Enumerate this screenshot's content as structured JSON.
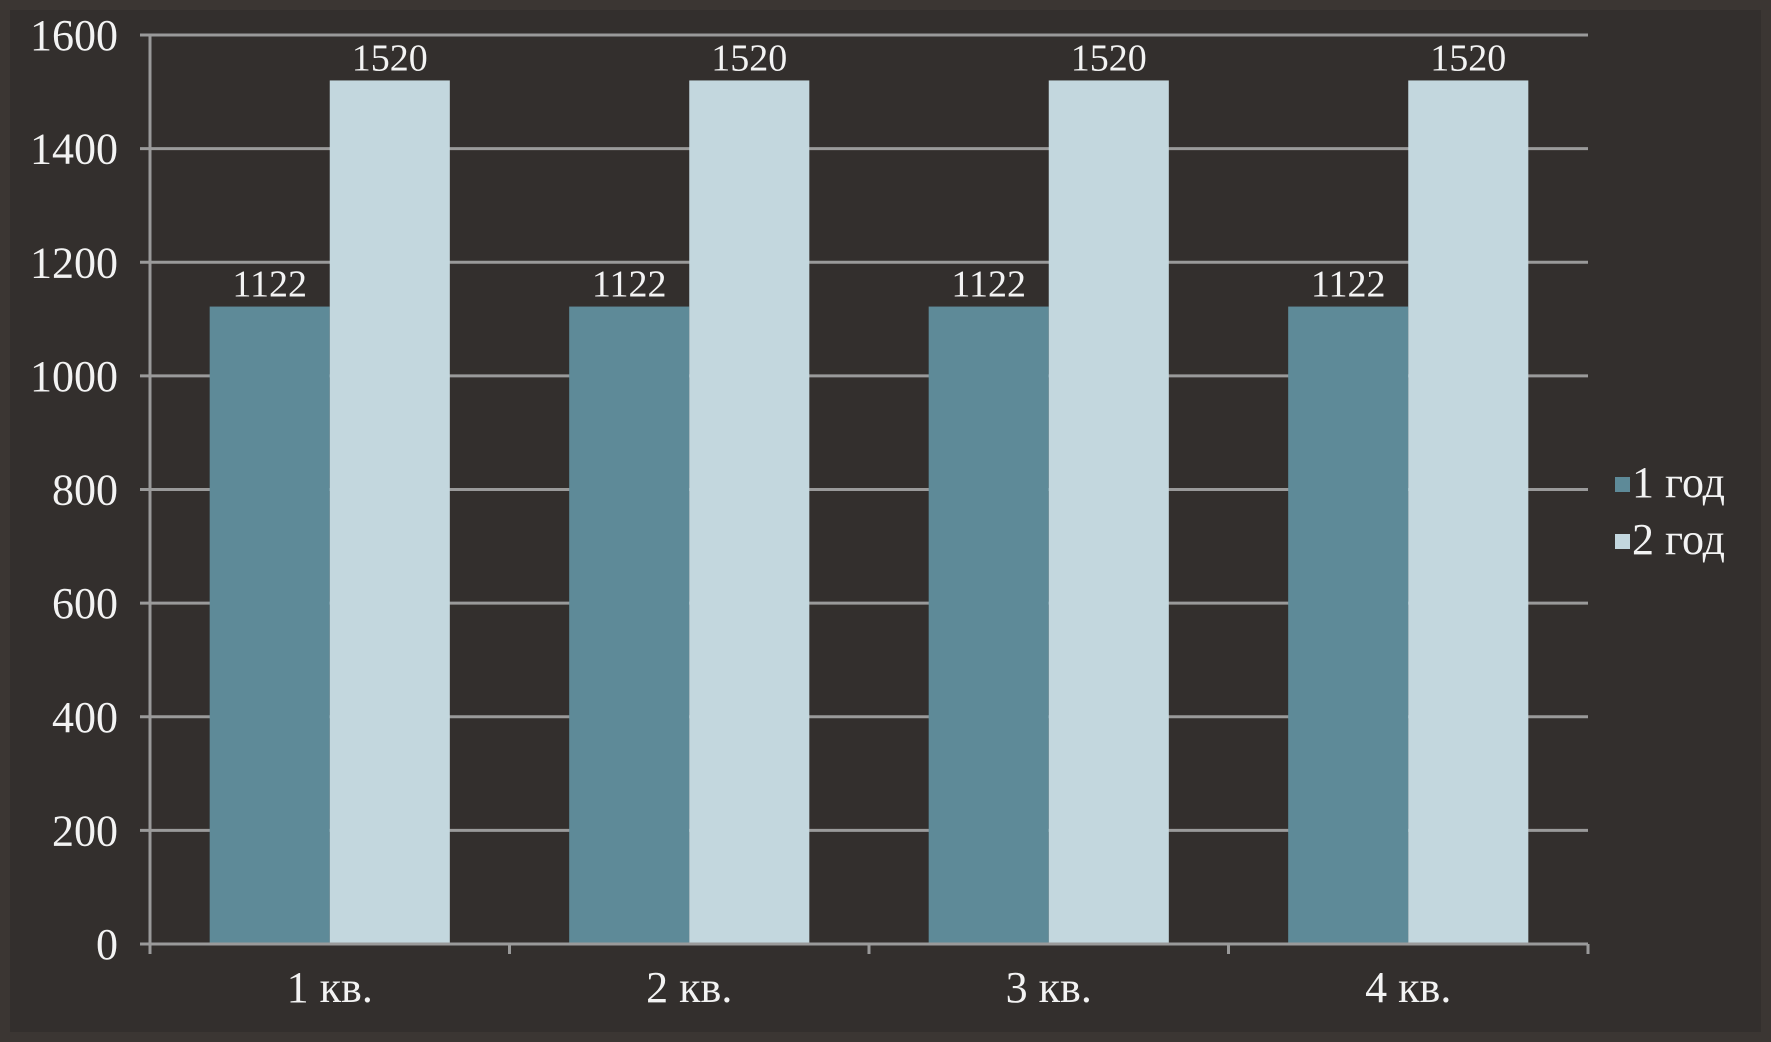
{
  "chart_data": {
    "type": "bar",
    "categories": [
      "1 кв.",
      "2 кв.",
      "3 кв.",
      "4 кв."
    ],
    "series": [
      {
        "name": "1 год",
        "values": [
          1122,
          1122,
          1122,
          1122
        ],
        "color": "#5e8a98"
      },
      {
        "name": "2 год",
        "values": [
          1520,
          1520,
          1520,
          1520
        ],
        "color": "#c3d7de"
      }
    ],
    "ylim": [
      0,
      1600
    ],
    "yticks": [
      0,
      200,
      400,
      600,
      800,
      1000,
      1200,
      1400,
      1600
    ],
    "grid": true,
    "legend_position": "right",
    "data_labels": true,
    "background_color": "#332f2d",
    "text_color": "#f3f3f3",
    "gridline_color": "#9a9a9a"
  }
}
